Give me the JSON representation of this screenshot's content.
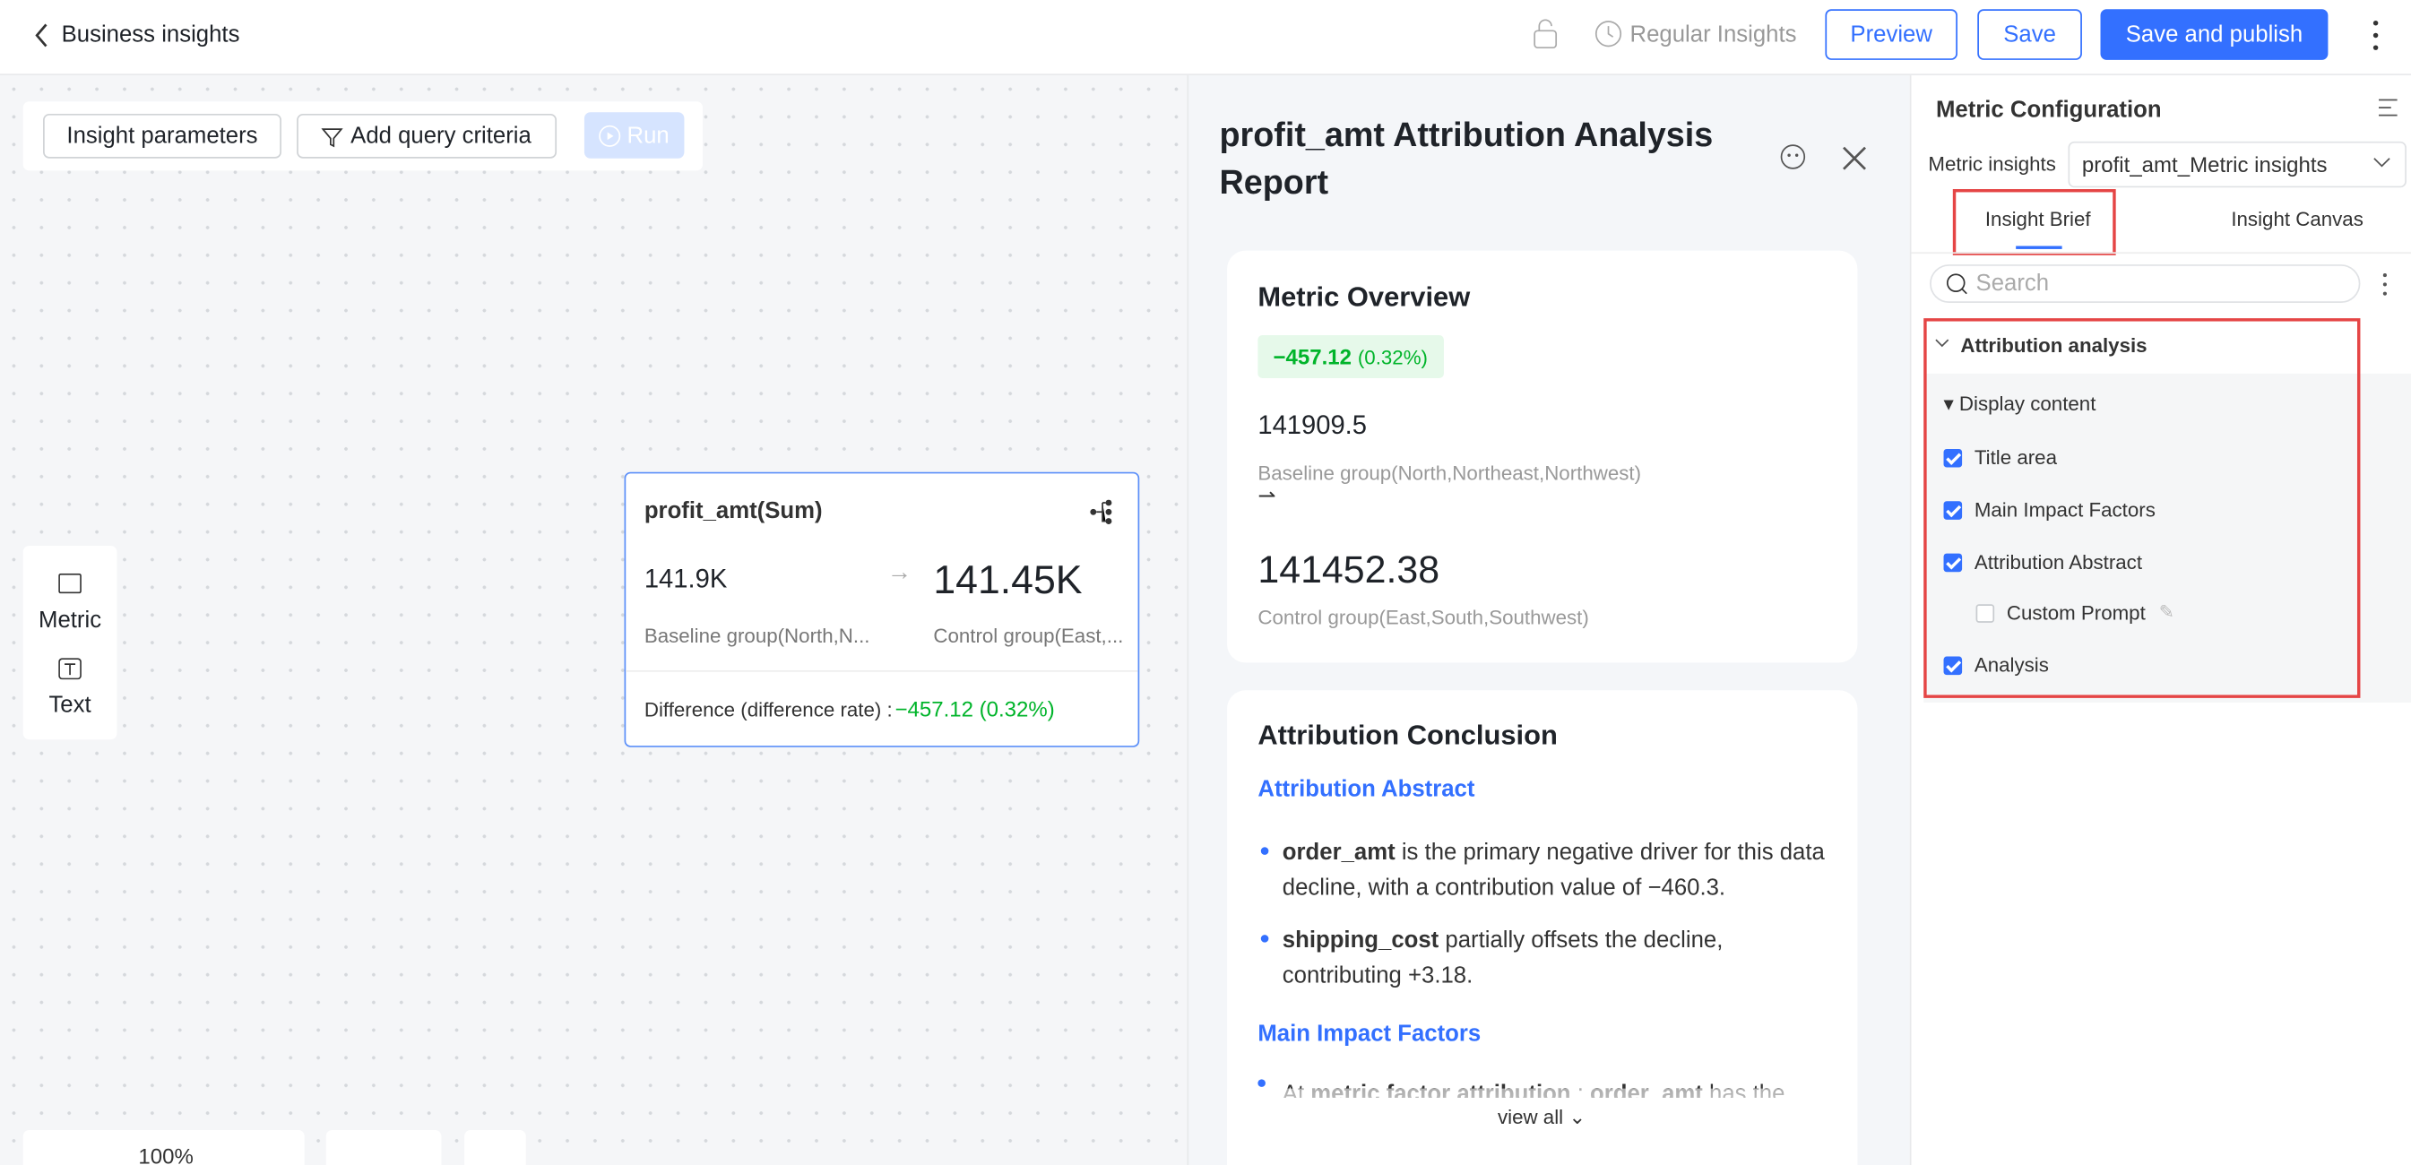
{
  "header": {
    "back": "Business insights",
    "regular": "Regular Insights",
    "buttons": [
      "Preview",
      "Save",
      "Save and publish"
    ]
  },
  "toolbar": {
    "buttons": [
      "Insight parameters",
      "Add query criteria",
      "Run"
    ]
  },
  "palette": [
    "Metric",
    "Text"
  ],
  "card": {
    "title": "profit_amt(Sum)",
    "baseline_value": "141.9K",
    "control_value": "141.45K",
    "baseline_label": "Baseline group(North,N...",
    "control_label": "Control group(East,...",
    "difference_label": "Difference (difference rate) :",
    "difference_value": "−457.12 (0.32%)"
  },
  "zoom": "100%",
  "report": {
    "title": "profit_amt Attribution Analysis Report",
    "overview": {
      "heading": "Metric Overview",
      "badge_value": "−457.12",
      "badge_rate": "(0.32%)",
      "baseline_value": "141909.5",
      "baseline_label": "Baseline group(North,Northeast,Northwest)",
      "control_value": "141452.38",
      "control_label": "Control group(East,South,Southwest)"
    },
    "conclusion": {
      "heading": "Attribution Conclusion",
      "abstract_heading": "Attribution Abstract",
      "bullets": [
        {
          "bold": "order_amt",
          "text": " is the primary negative driver for this data decline, with a contribution value of −460.3."
        },
        {
          "bold": "shipping_cost",
          "text": " partially offsets the decline, contributing +3.18."
        }
      ],
      "factors_heading": "Main Impact Factors",
      "factors_line": [
        "At ",
        "metric factor attribution",
        " : ",
        "order_amt",
        " has the"
      ],
      "view_all": "view all"
    }
  },
  "config": {
    "title": "Metric Configuration",
    "metric_label": "Metric insights",
    "metric_value": "profit_amt_Metric insights",
    "tabs": [
      "Insight Brief",
      "Insight Canvas"
    ],
    "search": "Search",
    "section": "Attribution analysis",
    "subsection": "Display content",
    "items": [
      {
        "label": "Title area",
        "checked": true
      },
      {
        "label": "Main Impact Factors",
        "checked": true
      },
      {
        "label": "Attribution Abstract",
        "checked": true
      },
      {
        "label": "Custom Prompt",
        "checked": false
      },
      {
        "label": "Analysis",
        "checked": true
      }
    ]
  }
}
